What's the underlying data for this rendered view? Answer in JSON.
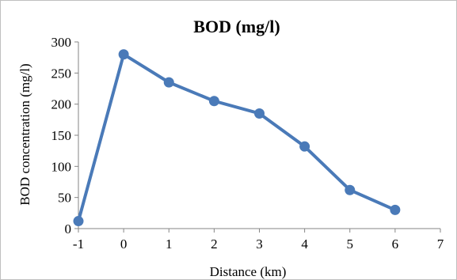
{
  "chart_data": {
    "type": "line",
    "title": "BOD (mg/l)",
    "xlabel": "Distance (km)",
    "ylabel": "BOD concentration (mg/l)",
    "xlim": [
      -1,
      7
    ],
    "ylim": [
      0,
      300
    ],
    "xticks": [
      "-1",
      "0",
      "1",
      "2",
      "3",
      "4",
      "5",
      "6",
      "7"
    ],
    "yticks": [
      "0",
      "50",
      "100",
      "150",
      "200",
      "250",
      "300"
    ],
    "series": [
      {
        "x": [
          -1,
          0,
          1,
          2,
          3,
          4,
          5,
          6
        ],
        "y": [
          12,
          280,
          235,
          205,
          185,
          132,
          62,
          30
        ]
      }
    ],
    "grid": false,
    "legend": "none",
    "colors": {
      "series": "#4a7ab8"
    }
  }
}
